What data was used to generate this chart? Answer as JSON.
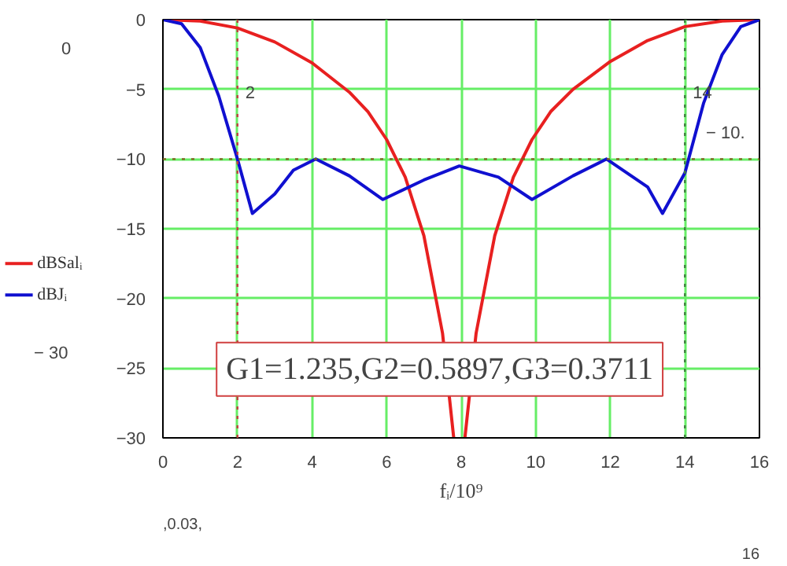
{
  "chart_data": {
    "type": "line",
    "xlabel": "fᵢ/10⁹",
    "x": [
      0,
      0.5,
      1,
      1.5,
      2,
      2.4,
      3,
      3.5,
      4.1,
      5,
      5.9,
      7,
      7.95,
      9,
      9.9,
      11,
      11.9,
      13,
      13.4,
      14,
      14.5,
      15,
      15.5,
      16
    ],
    "series": [
      {
        "name": "dBSalᵢ",
        "color": "#e82020",
        "x": [
          0,
          1,
          2,
          3,
          4,
          5,
          5.5,
          6,
          6.5,
          7,
          7.5,
          7.8,
          7.95,
          8.1,
          8.4,
          8.9,
          9.4,
          9.9,
          10.4,
          11,
          12,
          13,
          14,
          15,
          16
        ],
        "values": [
          0,
          -0.1,
          -0.6,
          -1.6,
          -3.1,
          -5.2,
          -6.6,
          -8.6,
          -11.3,
          -15.5,
          -22.5,
          -30,
          null,
          -30,
          -22.5,
          -15.5,
          -11.3,
          -8.6,
          -6.6,
          -5,
          -3,
          -1.5,
          -0.5,
          -0.1,
          0
        ]
      },
      {
        "name": "dBJᵢ",
        "color": "#1010d0",
        "values": [
          0,
          -0.3,
          -2,
          -5.5,
          -10,
          -13.9,
          -12.5,
          -10.8,
          -10,
          -11.2,
          -12.9,
          -11.5,
          -10.5,
          -11.3,
          -12.9,
          -11.2,
          -10,
          -12,
          -13.9,
          -11,
          -6,
          -2.5,
          -0.5,
          0
        ]
      }
    ],
    "xlim": [
      0,
      16
    ],
    "ylim": [
      -30,
      0
    ],
    "xticks": [
      0,
      2,
      4,
      6,
      8,
      10,
      12,
      14,
      16
    ],
    "yticks": [
      -30,
      -25,
      -20,
      -15,
      -10,
      -5,
      0
    ],
    "grid": true,
    "legend": "left",
    "line_style": "solid",
    "ref_lines": [
      {
        "axis": "x",
        "value": 2,
        "label": "2",
        "color": "#c04040",
        "line_style": "dotted"
      },
      {
        "axis": "x",
        "value": 14,
        "label": "14",
        "color": "#408040",
        "line_style": "dotted"
      },
      {
        "axis": "y",
        "value": -10,
        "label": "− 10.",
        "color": "#806020",
        "line_style": "dotted"
      }
    ],
    "annotations": [
      "G1=1.235,G2=0.5897,G3=0.3711",
      "0",
      "− 30",
      ",0.03,",
      "16"
    ]
  }
}
